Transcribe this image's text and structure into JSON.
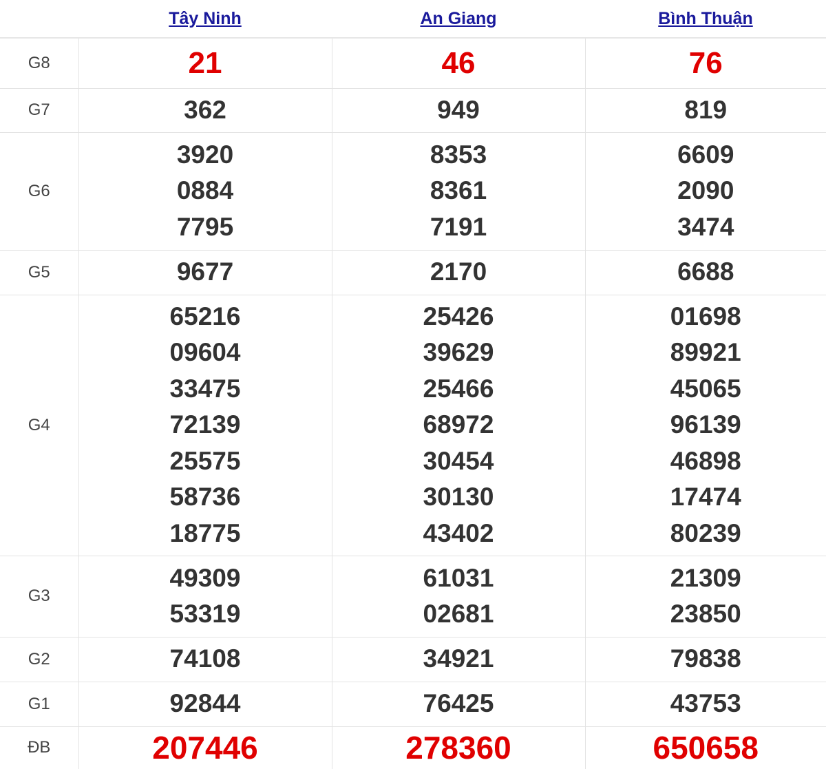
{
  "colors": {
    "link": "#1a1a9c",
    "highlight": "#e00000",
    "text": "#333333"
  },
  "provinces": [
    "Tây Ninh",
    "An Giang",
    "Bình Thuận"
  ],
  "prizes": [
    {
      "label": "G8",
      "key": "g8",
      "highlight": true,
      "values": [
        [
          "21"
        ],
        [
          "46"
        ],
        [
          "76"
        ]
      ]
    },
    {
      "label": "G7",
      "key": "g7",
      "values": [
        [
          "362"
        ],
        [
          "949"
        ],
        [
          "819"
        ]
      ]
    },
    {
      "label": "G6",
      "key": "g6",
      "values": [
        [
          "3920",
          "0884",
          "7795"
        ],
        [
          "8353",
          "8361",
          "7191"
        ],
        [
          "6609",
          "2090",
          "3474"
        ]
      ]
    },
    {
      "label": "G5",
      "key": "g5",
      "values": [
        [
          "9677"
        ],
        [
          "2170"
        ],
        [
          "6688"
        ]
      ]
    },
    {
      "label": "G4",
      "key": "g4",
      "values": [
        [
          "65216",
          "09604",
          "33475",
          "72139",
          "25575",
          "58736",
          "18775"
        ],
        [
          "25426",
          "39629",
          "25466",
          "68972",
          "30454",
          "30130",
          "43402"
        ],
        [
          "01698",
          "89921",
          "45065",
          "96139",
          "46898",
          "17474",
          "80239"
        ]
      ]
    },
    {
      "label": "G3",
      "key": "g3",
      "values": [
        [
          "49309",
          "53319"
        ],
        [
          "61031",
          "02681"
        ],
        [
          "21309",
          "23850"
        ]
      ]
    },
    {
      "label": "G2",
      "key": "g2",
      "values": [
        [
          "74108"
        ],
        [
          "34921"
        ],
        [
          "79838"
        ]
      ]
    },
    {
      "label": "G1",
      "key": "g1",
      "values": [
        [
          "92844"
        ],
        [
          "76425"
        ],
        [
          "43753"
        ]
      ]
    },
    {
      "label": "ĐB",
      "key": "db",
      "highlight": true,
      "values": [
        [
          "207446"
        ],
        [
          "278360"
        ],
        [
          "650658"
        ]
      ]
    }
  ]
}
